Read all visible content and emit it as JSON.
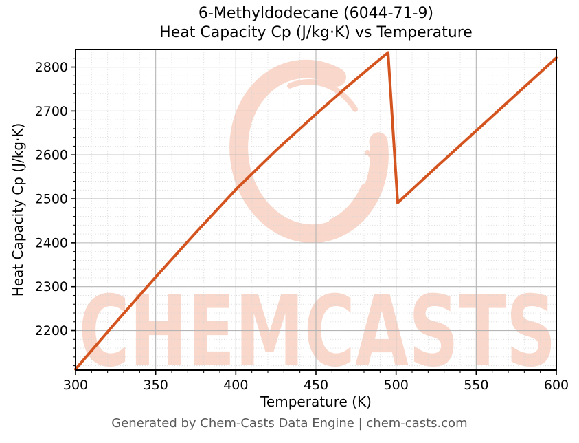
{
  "title": {
    "line1": "6-Methyldodecane (6044-71-9)",
    "line2": "Heat Capacity Cp (J/kg·K) vs Temperature"
  },
  "axes": {
    "xlabel": "Temperature (K)",
    "ylabel": "Heat Capacity Cp (J/kg·K)"
  },
  "footer": {
    "text": "Generated by Chem-Casts Data Engine | chem-casts.com"
  },
  "watermark": {
    "text": "CHEMCASTS",
    "logo": "brush-circle-icon",
    "color": "#f9d7ca"
  },
  "chart_data": {
    "type": "line",
    "title": "6-Methyldodecane (6044-71-9) Heat Capacity Cp (J/kg·K) vs Temperature",
    "xlabel": "Temperature (K)",
    "ylabel": "Heat Capacity Cp (J/kg·K)",
    "xlim": [
      300,
      600
    ],
    "ylim": [
      2110,
      2840
    ],
    "x_ticks": [
      300,
      350,
      400,
      450,
      500,
      550,
      600
    ],
    "y_ticks": [
      2200,
      2300,
      2400,
      2500,
      2600,
      2700,
      2800
    ],
    "x_minor_step": 10,
    "y_minor_step": 20,
    "grid": {
      "major": true,
      "minor": true
    },
    "legend": "none",
    "colors": {
      "line": "#d4541f",
      "grid_major": "#b5b5b5",
      "grid_minor": "#d6d6d6",
      "spine": "#000000",
      "tick_text": "#000000",
      "footer_text": "#595959",
      "watermark": "#f9d7ca",
      "background": "#ffffff"
    },
    "series": [
      {
        "name": "Heat Capacity Cp (J/kg·K)",
        "points": [
          [
            300,
            2112
          ],
          [
            325,
            2218
          ],
          [
            350,
            2322
          ],
          [
            375,
            2423
          ],
          [
            400,
            2521
          ],
          [
            425,
            2610
          ],
          [
            450,
            2693
          ],
          [
            470,
            2757
          ],
          [
            485,
            2803
          ],
          [
            495,
            2833
          ],
          [
            501,
            2491
          ],
          [
            525,
            2572
          ],
          [
            550,
            2655
          ],
          [
            575,
            2738
          ],
          [
            600,
            2821
          ]
        ]
      }
    ]
  }
}
